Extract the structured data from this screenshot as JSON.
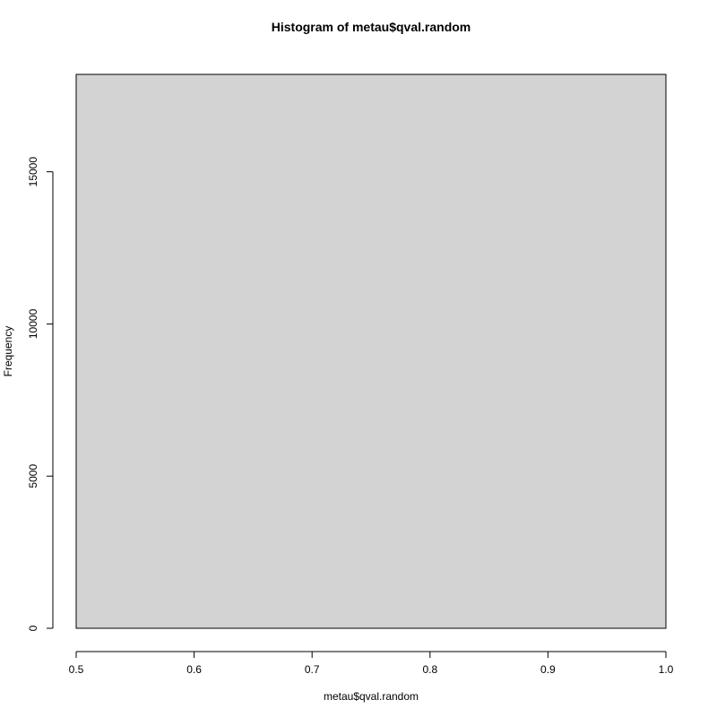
{
  "chart_data": {
    "type": "bar",
    "title": "Histogram of metau$qval.random",
    "xlabel": "metau$qval.random",
    "ylabel": "Frequency",
    "bins": [
      {
        "x0": 0.5,
        "x1": 1.0,
        "count": 18200
      }
    ],
    "xlim": [
      0.5,
      1.0
    ],
    "ylim": [
      0,
      18200
    ],
    "x_ticks": [
      0.5,
      0.6,
      0.7,
      0.8,
      0.9,
      1.0
    ],
    "x_tick_labels": [
      "0.5",
      "0.6",
      "0.7",
      "0.8",
      "0.9",
      "1.0"
    ],
    "y_ticks": [
      0,
      5000,
      10000,
      15000
    ],
    "y_tick_labels": [
      "0",
      "5000",
      "10000",
      "15000"
    ],
    "grid": false,
    "bar_fill": "#d3d3d3",
    "bar_stroke": "#000000"
  }
}
